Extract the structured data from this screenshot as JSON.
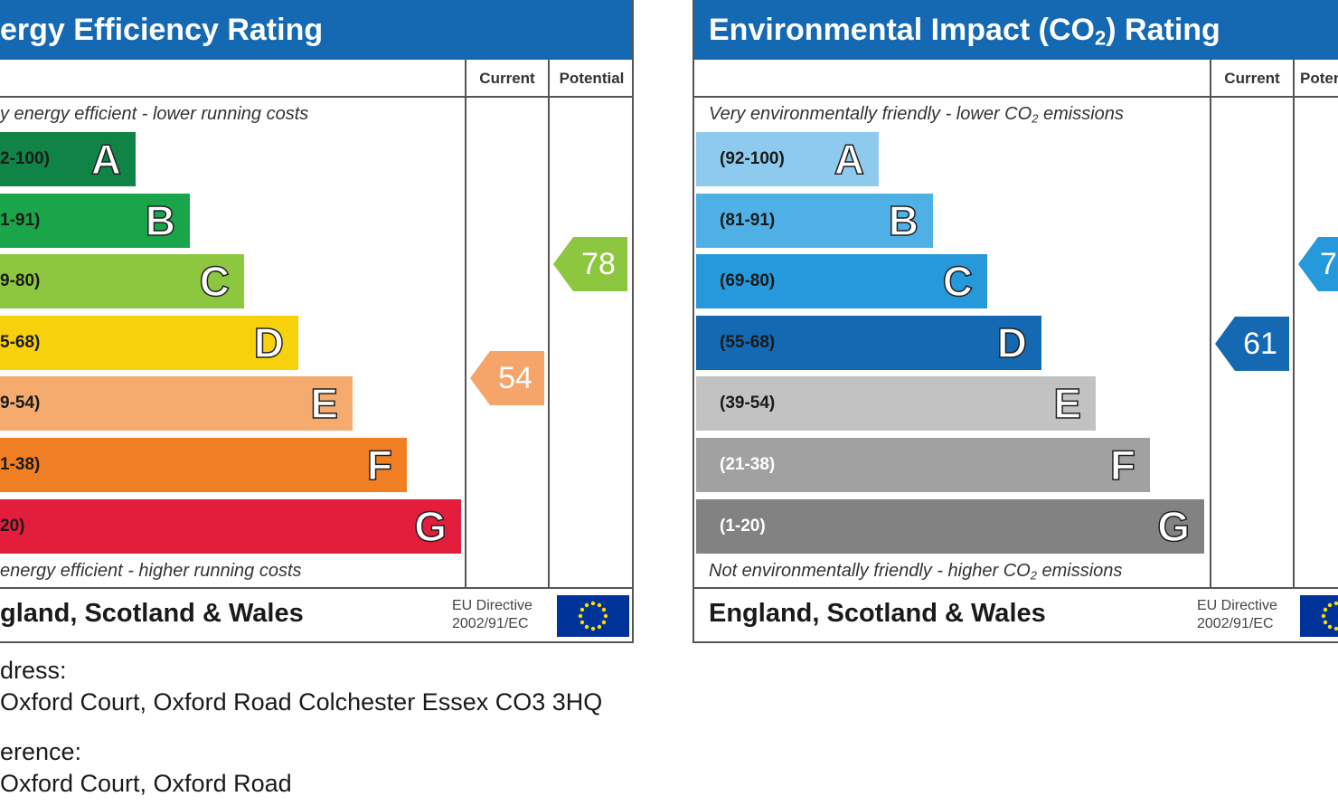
{
  "chart_data": [
    {
      "type": "bar",
      "title": "Energy Efficiency Rating",
      "title_visible": "ergy Efficiency Rating",
      "columns": [
        "Current",
        "Potential"
      ],
      "top_note": "y energy efficient - lower running costs",
      "bottom_note": "energy efficient - higher running costs",
      "bands": [
        {
          "range": "2-100)",
          "letter": "A",
          "color": "#108446"
        },
        {
          "range": "1-91)",
          "letter": "B",
          "color": "#1ba54a"
        },
        {
          "range": "9-80)",
          "letter": "C",
          "color": "#8dc63f"
        },
        {
          "range": "5-68)",
          "letter": "D",
          "color": "#f6d10c"
        },
        {
          "range": "9-54)",
          "letter": "E",
          "color": "#f5ab6d"
        },
        {
          "range": "1-38)",
          "letter": "F",
          "color": "#ef7f22"
        },
        {
          "range": "20)",
          "letter": "G",
          "color": "#e31d3c"
        }
      ],
      "current": {
        "value": "54",
        "color": "#f5a46a"
      },
      "potential": {
        "value": "78",
        "color": "#8dc63f"
      },
      "footer": "gland, Scotland & Wales",
      "eu_directive": [
        "EU Directive",
        "2002/91/EC"
      ]
    },
    {
      "type": "bar",
      "title": "Environmental Impact (CO2) Rating",
      "columns": [
        "Current",
        "Poter"
      ],
      "top_note": "Very environmentally friendly - lower CO2 emissions",
      "bottom_note": "Not environmentally friendly - higher CO2 emissions",
      "bands": [
        {
          "range": "(92-100)",
          "letter": "A",
          "color": "#8ecaee"
        },
        {
          "range": "(81-91)",
          "letter": "B",
          "color": "#4fb0e6"
        },
        {
          "range": "(69-80)",
          "letter": "C",
          "color": "#2599db"
        },
        {
          "range": "(55-68)",
          "letter": "D",
          "color": "#1469b2"
        },
        {
          "range": "(39-54)",
          "letter": "E",
          "color": "#c2c2c2"
        },
        {
          "range": "(21-38)",
          "letter": "F",
          "color": "#a1a1a1"
        },
        {
          "range": "(1-20)",
          "letter": "G",
          "color": "#828282"
        }
      ],
      "current": {
        "value": "61",
        "color": "#1469b2"
      },
      "potential": {
        "value": "7",
        "color": "#2599db"
      },
      "footer": "England, Scotland & Wales",
      "eu_directive": [
        "EU Directive",
        "2002/91/EC"
      ]
    }
  ],
  "caption": {
    "address_label": "dress:",
    "address_value": "Oxford Court, Oxford Road Colchester Essex CO3 3HQ",
    "reference_label": "erence:",
    "reference_value": "Oxford Court, Oxford Road"
  }
}
